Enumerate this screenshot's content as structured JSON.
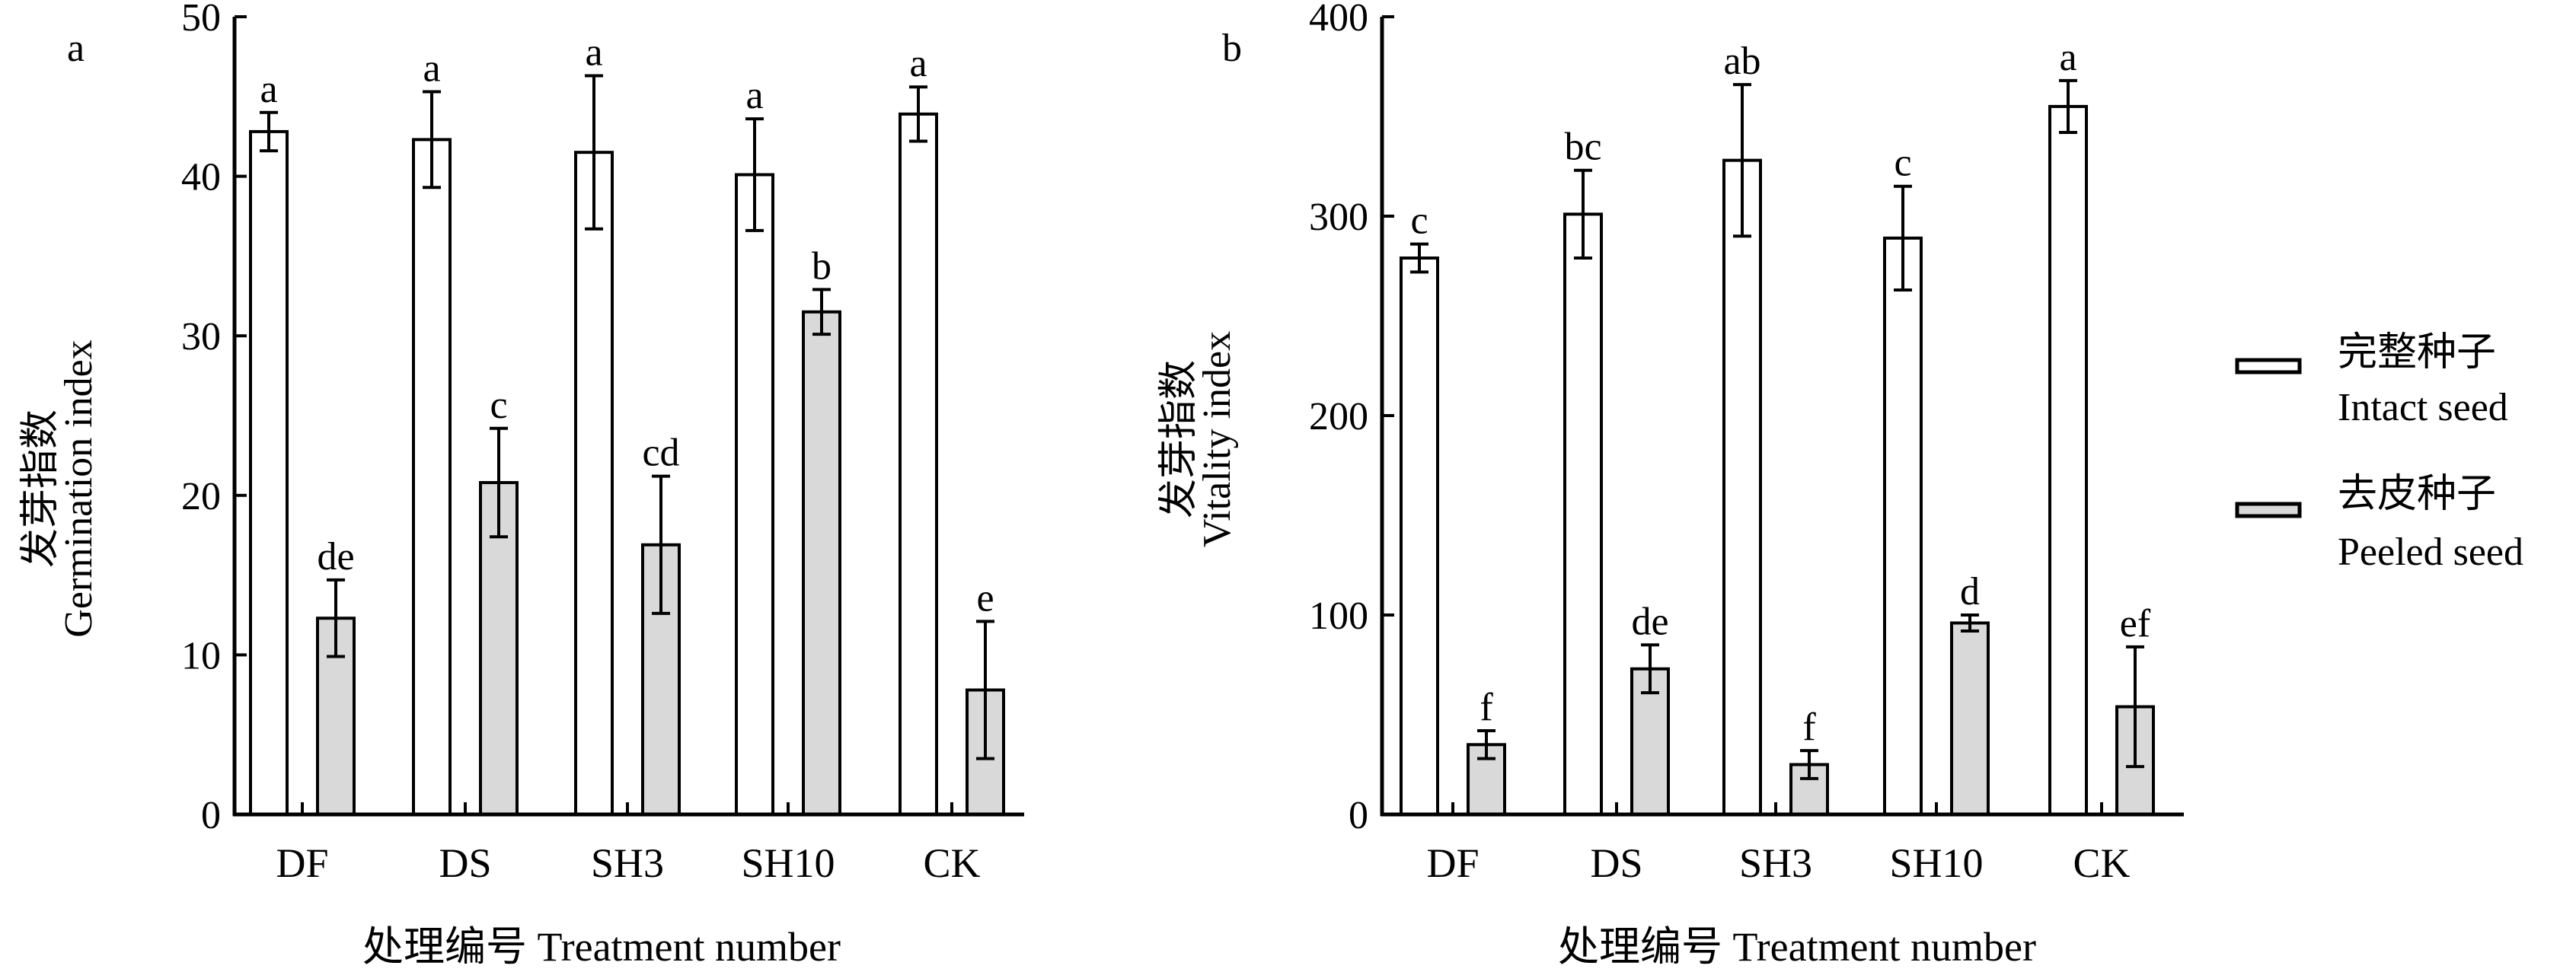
{
  "chart_data": [
    {
      "type": "bar",
      "panel_label": "a",
      "categories": [
        "DF",
        "DS",
        "SH3",
        "SH10",
        "CK"
      ],
      "series": [
        {
          "name": "完整种子 Intact seed",
          "color": "#ffffff",
          "values": [
            42.8,
            42.3,
            41.5,
            40.1,
            43.9
          ],
          "errors": [
            1.2,
            3.0,
            4.8,
            3.5,
            1.7
          ],
          "letters": [
            "a",
            "a",
            "a",
            "a",
            "a"
          ]
        },
        {
          "name": "去皮种子 Peeled seed",
          "color": "#d9d9d9",
          "values": [
            12.3,
            20.8,
            16.9,
            31.5,
            7.8
          ],
          "errors": [
            2.4,
            3.4,
            4.3,
            1.4,
            4.3
          ],
          "letters": [
            "de",
            "c",
            "cd",
            "b",
            "e"
          ]
        }
      ],
      "ylabel_cn": "发芽指数",
      "ylabel": "Germination index",
      "xlabel": "处理编号 Treatment number",
      "ylim": [
        0,
        50
      ],
      "yticks": [
        "0",
        "10",
        "20",
        "30",
        "40",
        "50"
      ]
    },
    {
      "type": "bar",
      "panel_label": "b",
      "categories": [
        "DF",
        "DS",
        "SH3",
        "SH10",
        "CK"
      ],
      "series": [
        {
          "name": "完整种子 Intact seed",
          "color": "#ffffff",
          "values": [
            279,
            301,
            328,
            289,
            355
          ],
          "errors": [
            7,
            22,
            38,
            26,
            13
          ],
          "letters": [
            "c",
            "bc",
            "ab",
            "c",
            "a"
          ]
        },
        {
          "name": "去皮种子 Peeled seed",
          "color": "#d9d9d9",
          "values": [
            35,
            73,
            25,
            96,
            54
          ],
          "errors": [
            7,
            12,
            7,
            4,
            30
          ],
          "letters": [
            "f",
            "de",
            "f",
            "d",
            "ef"
          ]
        }
      ],
      "ylabel_cn": "发芽指数",
      "ylabel": "Vitality index",
      "xlabel": "处理编号 Treatment number",
      "ylim": [
        0,
        400
      ],
      "yticks": [
        "0",
        "100",
        "200",
        "300",
        "400"
      ]
    }
  ],
  "legend": [
    {
      "cn": "完整种子",
      "en": "Intact seed",
      "color": "#ffffff"
    },
    {
      "cn": "去皮种子",
      "en": "Peeled seed",
      "color": "#d9d9d9"
    }
  ]
}
